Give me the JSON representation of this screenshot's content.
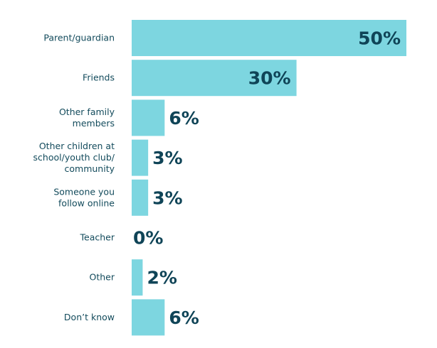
{
  "chart_data": {
    "type": "bar",
    "orientation": "horizontal",
    "categories": [
      [
        "Parent/guardian"
      ],
      [
        "Friends"
      ],
      [
        "Other family",
        "members"
      ],
      [
        "Other children at",
        "school/youth club/",
        "community"
      ],
      [
        "Someone you",
        "follow online"
      ],
      [
        "Teacher"
      ],
      [
        "Other"
      ],
      [
        "Don’t know"
      ]
    ],
    "values": [
      50,
      30,
      6,
      3,
      3,
      0,
      2,
      6
    ],
    "value_labels": [
      "50%",
      "30%",
      "6%",
      "3%",
      "3%",
      "0%",
      "2%",
      "6%"
    ],
    "title": "",
    "xlabel": "",
    "ylabel": "",
    "xlim": [
      0,
      50
    ],
    "grid": false,
    "colors": {
      "bar": "#7dd6e0",
      "text": "#0f4457"
    }
  }
}
